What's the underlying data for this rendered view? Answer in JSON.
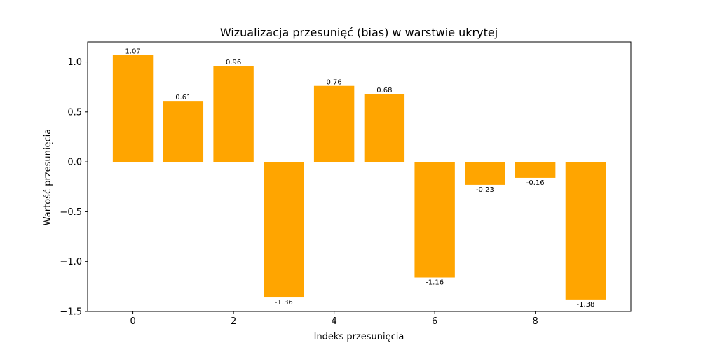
{
  "chart_data": {
    "type": "bar",
    "title": "Wizualizacja przesunięć (bias) w warstwie ukrytej",
    "xlabel": "Indeks przesunięcia",
    "ylabel": "Wartość przesunięcia",
    "x": [
      0,
      1,
      2,
      3,
      4,
      5,
      6,
      7,
      8,
      9
    ],
    "values": [
      1.07,
      0.61,
      0.96,
      -1.36,
      0.76,
      0.68,
      -1.16,
      -0.23,
      -0.16,
      -1.38
    ],
    "value_labels": [
      "1.07",
      "0.61",
      "0.96",
      "-1.36",
      "0.76",
      "0.68",
      "-1.16",
      "-0.23",
      "-0.16",
      "-1.38"
    ],
    "xlim": [
      -0.9,
      9.9
    ],
    "ylim": [
      -1.5,
      1.2
    ],
    "xticks": [
      0,
      2,
      4,
      6,
      8
    ],
    "xtick_labels": [
      "0",
      "2",
      "4",
      "6",
      "8"
    ],
    "yticks": [
      1.0,
      0.5,
      0.0,
      -0.5,
      -1.0,
      -1.5
    ],
    "ytick_labels": [
      "1.0",
      "0.5",
      "0.0",
      "−0.5",
      "−1.0",
      "−1.5"
    ],
    "bar_color": "#ffa500",
    "grid": false,
    "legend": "none"
  }
}
